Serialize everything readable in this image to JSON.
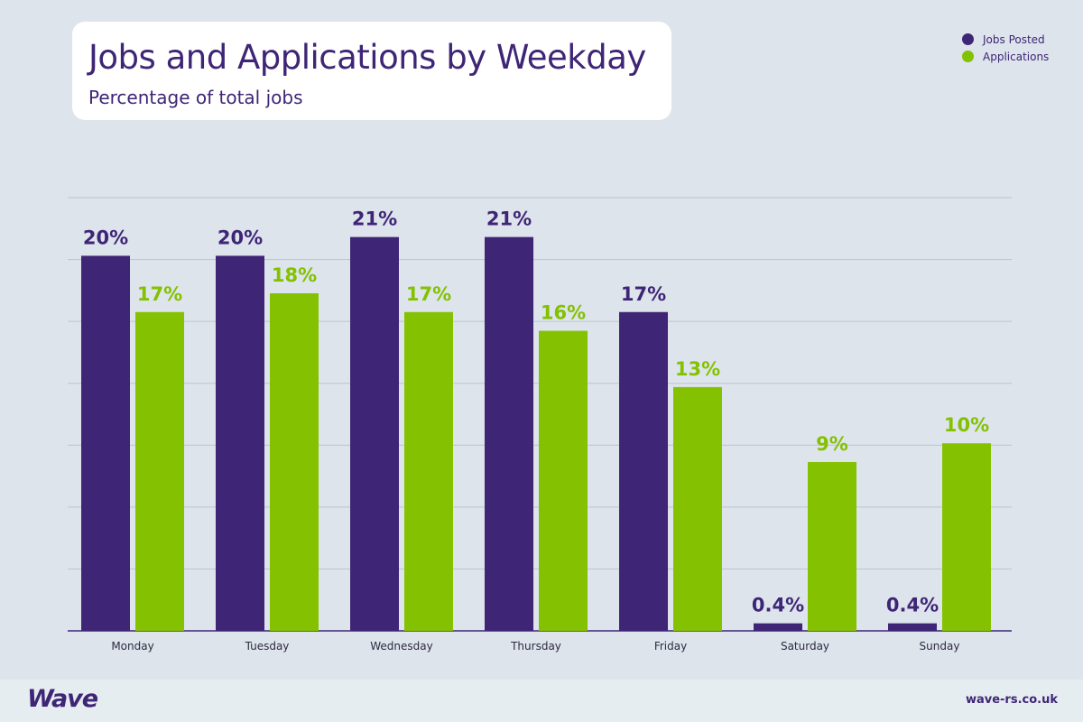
{
  "chart_data": {
    "type": "bar",
    "title": "Jobs and Applications by Weekday",
    "subtitle": "Percentage of total jobs",
    "categories": [
      "Monday",
      "Tuesday",
      "Wednesday",
      "Thursday",
      "Friday",
      "Saturday",
      "Sunday"
    ],
    "series": [
      {
        "name": "Jobs Posted",
        "color": "#3f2576",
        "values": [
          20,
          20,
          21,
          21,
          17,
          0.4,
          0.4
        ],
        "labels": [
          "20%",
          "20%",
          "21%",
          "21%",
          "17%",
          "0.4%",
          "0.4%"
        ]
      },
      {
        "name": "Applications",
        "color": "#84c100",
        "values": [
          17,
          18,
          17,
          16,
          13,
          9,
          10
        ],
        "labels": [
          "17%",
          "18%",
          "17%",
          "16%",
          "13%",
          "9%",
          "10%"
        ]
      }
    ],
    "ylim": [
      0,
      23.1
    ],
    "grid": true,
    "legend_position": "top-right"
  },
  "footer": {
    "logo": "Wave",
    "website": "wave-rs.co.uk"
  }
}
